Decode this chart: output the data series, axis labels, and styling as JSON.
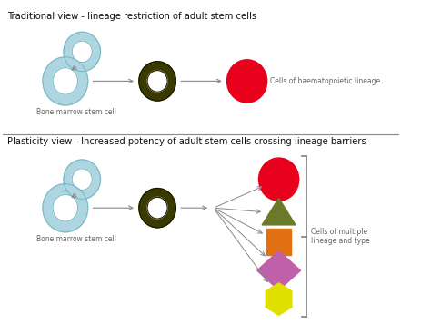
{
  "title1": "Traditional view - lineage restriction of adult stem cells",
  "title2": "Plasticity view - Increased potency of adult stem cells crossing lineage barriers",
  "label_bone_marrow": "Bone marrow stem cell",
  "label_haem": "Cells of haematopoietic lineage",
  "label_multiple": "Cells of multiple\nlineage and type",
  "bg_color": "#ffffff",
  "light_blue": "#aed6e0",
  "light_blue_edge": "#7ab8c8",
  "dark_olive": "#3a3a00",
  "dark_olive_edge": "#1a1a00",
  "red": "#e8001c",
  "olive_green": "#6b7a28",
  "orange": "#e07010",
  "purple": "#c060aa",
  "yellow": "#e0e000",
  "arrow_color": "#888888",
  "text_color": "#666666",
  "title_color": "#111111",
  "divider_color": "#888888"
}
